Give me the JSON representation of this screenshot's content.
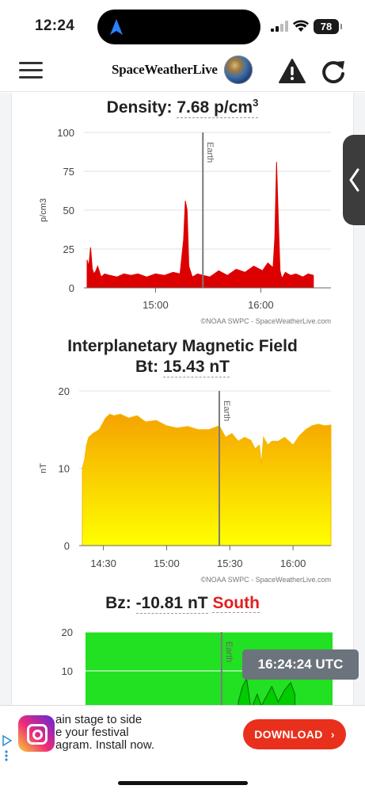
{
  "status_bar": {
    "time": "12:24",
    "battery": "78"
  },
  "header": {
    "brand": "SpaceWeatherLive"
  },
  "density_chart": {
    "label": "Density: ",
    "value": "7.68 p/cm",
    "unit_sup": "3",
    "credit": "©NOAA SWPC - SpaceWeatherLive.com",
    "earth_label": "Earth"
  },
  "imf_chart": {
    "title": "Interplanetary Magnetic Field",
    "label": "Bt: ",
    "value": "15.43 nT",
    "credit": "©NOAA SWPC - SpaceWeatherLive.com",
    "earth_label": "Earth"
  },
  "bz_chart": {
    "label": "Bz: ",
    "value": "-10.81 nT",
    "direction": "South",
    "earth_label": "Earth"
  },
  "tooltip": "16:24:24 UTC",
  "ad": {
    "line1": "ain stage to side",
    "line2": "e your festival",
    "line3": "agram. Install now.",
    "button": "DOWNLOAD"
  },
  "chart_data": [
    {
      "type": "area",
      "ylabel": "p/cm3",
      "ylim": [
        0,
        100
      ],
      "yticks": [
        0,
        25,
        50,
        75,
        100
      ],
      "xticks": [
        "15:00",
        "16:00"
      ],
      "xlim": [
        "14:21",
        "16:40"
      ],
      "grid": true,
      "color": "#dd0000",
      "earth_marker": "15:27",
      "x": [
        "14:21",
        "14:22",
        "14:23",
        "14:24",
        "14:25",
        "14:26",
        "14:27",
        "14:29",
        "14:31",
        "14:34",
        "14:38",
        "14:42",
        "14:46",
        "14:50",
        "14:55",
        "15:00",
        "15:05",
        "15:10",
        "15:14",
        "15:16",
        "15:17",
        "15:18",
        "15:19",
        "15:21",
        "15:24",
        "15:27",
        "15:31",
        "15:36",
        "15:41",
        "15:46",
        "15:51",
        "15:56",
        "16:01",
        "16:04",
        "16:07",
        "16:08",
        "16:09",
        "16:10",
        "16:11",
        "16:12",
        "16:14",
        "16:17",
        "16:20",
        "16:24",
        "16:27",
        "16:30"
      ],
      "values": [
        18,
        14,
        26,
        12,
        9,
        11,
        14,
        7,
        9,
        8,
        7,
        9,
        8,
        9,
        7,
        9,
        8,
        10,
        9,
        31,
        56,
        50,
        14,
        7,
        9,
        8,
        7,
        11,
        8,
        12,
        10,
        14,
        11,
        16,
        13,
        32,
        81,
        44,
        11,
        6,
        10,
        8,
        9,
        7,
        9,
        8
      ]
    },
    {
      "type": "area",
      "ylabel": "nT",
      "ylim": [
        0,
        20
      ],
      "yticks": [
        0,
        10,
        20
      ],
      "xticks": [
        "14:30",
        "15:00",
        "15:30",
        "16:00"
      ],
      "xlim": [
        "14:20",
        "16:18"
      ],
      "grid": true,
      "color": "#f5b800",
      "earth_marker": "15:25",
      "x": [
        "14:20",
        "14:21",
        "14:22",
        "14:23",
        "14:25",
        "14:28",
        "14:31",
        "14:33",
        "14:35",
        "14:38",
        "14:42",
        "14:46",
        "14:50",
        "14:55",
        "15:00",
        "15:05",
        "15:10",
        "15:15",
        "15:20",
        "15:25",
        "15:28",
        "15:31",
        "15:34",
        "15:37",
        "15:40",
        "15:42",
        "15:44",
        "15:45",
        "15:46",
        "15:48",
        "15:50",
        "15:53",
        "15:56",
        "16:00",
        "16:03",
        "16:06",
        "16:09",
        "16:12",
        "16:15",
        "16:18"
      ],
      "values": [
        10,
        11,
        13,
        14,
        14.5,
        15,
        16.5,
        17,
        16.8,
        17,
        16.5,
        16.8,
        16,
        16.2,
        15.5,
        15.2,
        15.4,
        15,
        15,
        15.5,
        14,
        14.5,
        13.5,
        14,
        13.6,
        12.5,
        13,
        10.5,
        14,
        13,
        13.5,
        13.5,
        14,
        13,
        14.2,
        15,
        15.5,
        15.7,
        15.5,
        15.6
      ]
    },
    {
      "type": "area",
      "ylabel": "",
      "ylim": [
        -20,
        20
      ],
      "yticks": [
        10,
        20
      ],
      "xticks": [],
      "xlim": [
        "14:20",
        "16:18"
      ],
      "grid": true,
      "color": "#00cc00",
      "earth_marker": "15:25",
      "x": [
        "15:33",
        "15:35",
        "15:37",
        "15:39",
        "15:42",
        "15:44",
        "15:46",
        "15:49",
        "15:52",
        "15:55",
        "15:58",
        "16:00"
      ],
      "values": [
        2,
        6,
        8,
        0,
        4,
        1,
        3,
        6,
        2,
        5,
        7,
        4
      ]
    }
  ]
}
